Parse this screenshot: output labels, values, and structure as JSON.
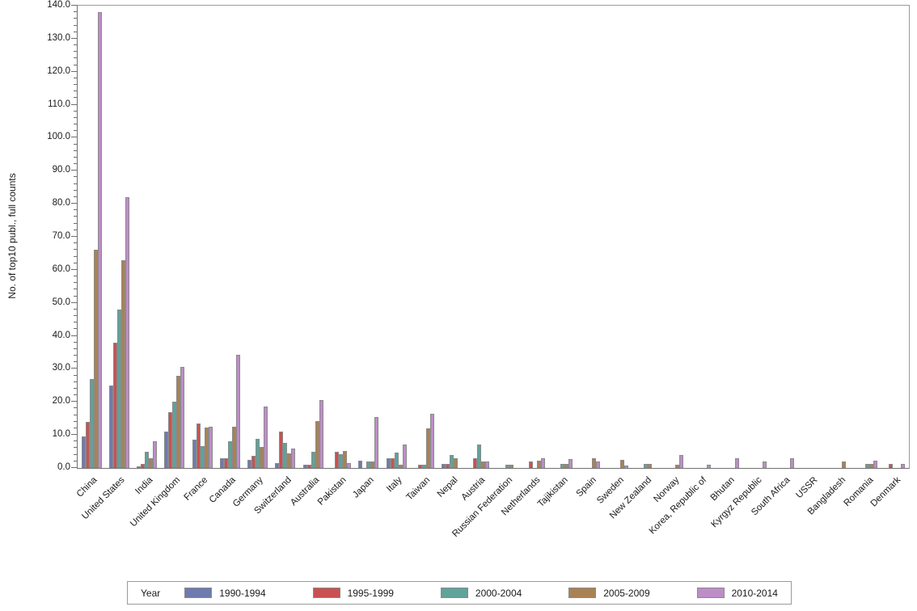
{
  "y_axis": {
    "title": "No. of top10 publ., full counts",
    "min": 0,
    "max": 140,
    "major_step": 10,
    "minor_step": 2,
    "tick_labels": [
      "0.0",
      "10.0",
      "20.0",
      "30.0",
      "40.0",
      "50.0",
      "60.0",
      "70.0",
      "80.0",
      "90.0",
      "100.0",
      "110.0",
      "120.0",
      "130.0",
      "140.0"
    ]
  },
  "legend": {
    "title": "Year",
    "entries": [
      {
        "label": "1990-1994",
        "color": "#6E7BAF"
      },
      {
        "label": "1995-1999",
        "color": "#C95151"
      },
      {
        "label": "2000-2004",
        "color": "#5FA39A"
      },
      {
        "label": "2005-2009",
        "color": "#A98254"
      },
      {
        "label": "2010-2014",
        "color": "#BD8DC7"
      }
    ]
  },
  "chart_data": {
    "type": "bar",
    "title": "",
    "xlabel": "",
    "ylabel": "No. of top10 publ., full counts",
    "ylim": [
      0,
      140
    ],
    "y_major_tick_step": 10,
    "y_minor_tick_step": 2,
    "grid": false,
    "legend_position": "bottom",
    "legend_title": "Year",
    "bar_outline_color": "#8a8a8a",
    "categories": [
      "China",
      "United States",
      "India",
      "United Kingdom",
      "France",
      "Canada",
      "Germany",
      "Switzerland",
      "Australia",
      "Pakistan",
      "Japan",
      "Italy",
      "Taiwan",
      "Nepal",
      "Austria",
      "Russian Federation",
      "Netherlands",
      "Tajikistan",
      "Spain",
      "Sweden",
      "New Zealand",
      "Norway",
      "Korea, Republic of",
      "Bhutan",
      "Kyrgyz Republic",
      "South Africa",
      "USSR",
      "Bangladesh",
      "Romania",
      "Denmark"
    ],
    "series": [
      {
        "name": "1990-1994",
        "color": "#6E7BAF",
        "values": [
          9.5,
          25,
          0.5,
          11,
          8.5,
          3,
          2.4,
          1.4,
          1,
          0,
          2.2,
          3,
          0,
          1.2,
          0,
          0,
          0,
          0,
          0,
          0,
          0,
          0,
          0,
          0,
          0,
          0,
          0,
          0,
          0,
          0
        ]
      },
      {
        "name": "1995-1999",
        "color": "#C95151",
        "values": [
          14,
          38,
          1.2,
          17,
          13.5,
          3,
          3.7,
          11,
          1,
          5,
          0,
          3,
          1,
          1.2,
          3,
          0,
          2,
          0,
          0,
          0,
          0,
          0,
          0,
          0,
          0,
          0,
          0,
          0,
          0,
          1.3
        ]
      },
      {
        "name": "2000-2004",
        "color": "#5FA39A",
        "values": [
          27,
          48,
          5,
          20,
          6.7,
          8.2,
          8.8,
          7.7,
          4.8,
          4.2,
          2,
          4.7,
          1,
          3.8,
          7,
          1,
          0,
          1.3,
          0,
          0,
          1.3,
          0,
          0,
          0,
          0,
          0,
          0,
          0,
          1.2,
          0
        ]
      },
      {
        "name": "2005-2009",
        "color": "#A98254",
        "values": [
          66,
          63,
          3,
          28,
          12.2,
          12.4,
          6.4,
          4.4,
          14.2,
          5.2,
          2,
          1,
          12,
          3,
          2,
          1,
          2.3,
          1.3,
          3,
          2.4,
          1.3,
          1,
          0,
          0,
          0,
          0,
          0,
          2,
          1.2,
          0
        ]
      },
      {
        "name": "2010-2014",
        "color": "#BD8DC7",
        "values": [
          138,
          82,
          8,
          30.5,
          12.6,
          34.2,
          18.7,
          6,
          20.5,
          1.4,
          15.4,
          7.2,
          16.3,
          0,
          2,
          0,
          3,
          2.8,
          2,
          0.8,
          0,
          4,
          1,
          3,
          2,
          3,
          0,
          0,
          2.2,
          1.2
        ]
      }
    ]
  }
}
